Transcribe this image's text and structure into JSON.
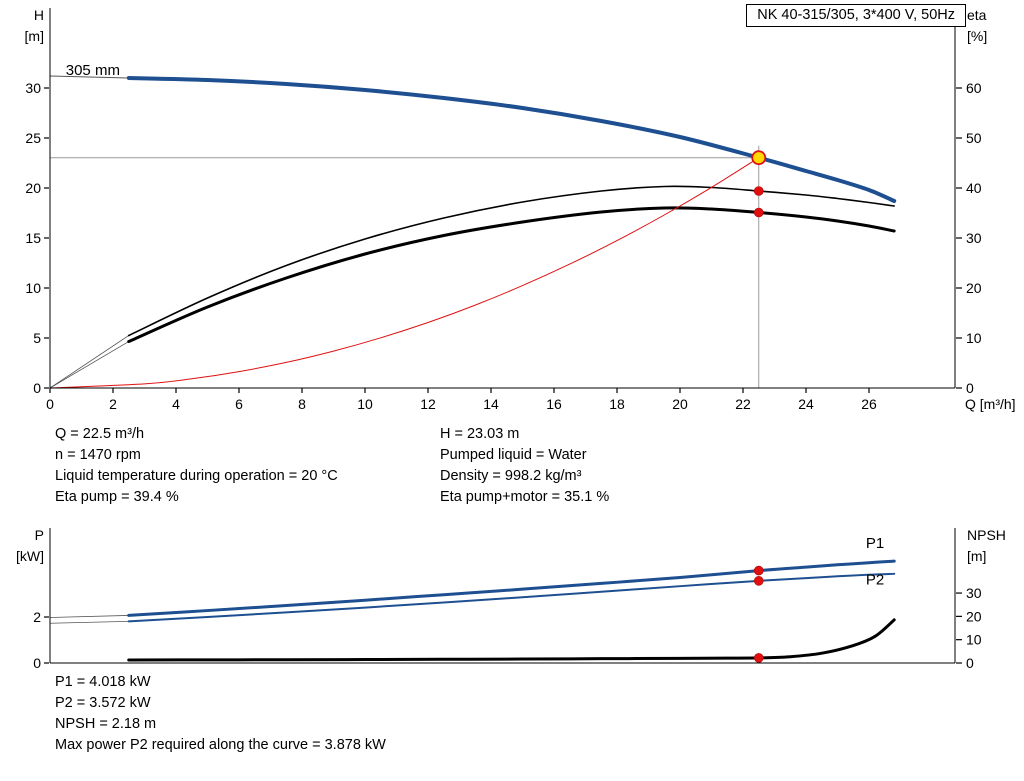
{
  "title_box": {
    "label": "NK 40-315/305, 3*400 V, 50Hz"
  },
  "operating_point_text": {
    "left": [
      "Q = 22.5 m³/h",
      "n = 1470 rpm",
      "Liquid temperature during operation = 20 °C",
      "Eta pump = 39.4 %"
    ],
    "right": [
      "H = 23.03 m",
      "Pumped liquid = Water",
      "Density = 998.2 kg/m³",
      "Eta pump+motor = 35.1 %"
    ]
  },
  "power_text": [
    "P1 = 4.018 kW",
    "P2 = 3.572 kW",
    "NPSH = 2.18 m",
    "Max power P2 required along the curve = 3.878 kW"
  ],
  "colors": {
    "curve_blue": "#1d4f91",
    "red": "#e01010",
    "duty_yellow": "#ffd900",
    "crosshair_gray": "#9a9a9a",
    "black": "#000000"
  },
  "chart_data": [
    {
      "id": "top",
      "type": "line",
      "x_axis": {
        "label": "Q [m³/h]",
        "min": 0,
        "max": 28.73,
        "ticks": [
          0,
          2,
          4,
          6,
          8,
          10,
          12,
          14,
          16,
          18,
          20,
          22,
          24,
          26
        ]
      },
      "y_left": {
        "label_lines": [
          "H",
          "[m]"
        ],
        "min": 0,
        "max": 38,
        "ticks": [
          0,
          5,
          10,
          15,
          20,
          25,
          30
        ]
      },
      "y_right": {
        "label_lines": [
          "eta",
          "[%]"
        ],
        "min": 0,
        "max": 76,
        "ticks": [
          0,
          10,
          20,
          30,
          40,
          50,
          60
        ]
      },
      "crosshair": {
        "q": 22.5,
        "value": 23.03,
        "axis": "left"
      },
      "series": [
        {
          "name": "pump-curve-lead-in",
          "axis": "left",
          "color": "#555555",
          "width": 1,
          "points": [
            [
              0,
              31.2
            ],
            [
              2.5,
              31
            ]
          ]
        },
        {
          "name": "pump-curve-305mm",
          "axis": "left",
          "color": "#1d4f91",
          "width": 4,
          "points": [
            [
              2.5,
              31
            ],
            [
              5,
              30.8
            ],
            [
              7.5,
              30.4
            ],
            [
              10,
              29.8
            ],
            [
              12.5,
              29.0
            ],
            [
              15,
              28.0
            ],
            [
              17.5,
              26.7
            ],
            [
              20,
              25.1
            ],
            [
              22.5,
              23.03
            ],
            [
              24,
              21.7
            ],
            [
              25,
              20.8
            ],
            [
              26,
              19.8
            ],
            [
              26.8,
              18.7
            ]
          ]
        },
        {
          "name": "eta-pump-lead-in",
          "axis": "right",
          "color": "#555555",
          "width": 0.8,
          "points": [
            [
              0,
              0
            ],
            [
              2.5,
              10.5
            ]
          ]
        },
        {
          "name": "eta-pump-curve",
          "axis": "right",
          "color": "#000000",
          "width": 1.6,
          "points": [
            [
              2.5,
              10.5
            ],
            [
              5,
              18
            ],
            [
              7.5,
              24.5
            ],
            [
              10,
              29.8
            ],
            [
              12.5,
              34
            ],
            [
              15,
              37.2
            ],
            [
              17.5,
              39.4
            ],
            [
              19.5,
              40.3
            ],
            [
              21,
              40.1
            ],
            [
              22.5,
              39.4
            ],
            [
              24,
              38.6
            ],
            [
              25,
              37.9
            ],
            [
              26,
              37.1
            ],
            [
              26.8,
              36.4
            ]
          ]
        },
        {
          "name": "eta-pump-motor-lead-in",
          "axis": "right",
          "color": "#555555",
          "width": 0.8,
          "points": [
            [
              0,
              0
            ],
            [
              2.5,
              9.3
            ]
          ]
        },
        {
          "name": "eta-pump-motor-curve",
          "axis": "right",
          "color": "#000000",
          "width": 3,
          "points": [
            [
              2.5,
              9.3
            ],
            [
              5,
              16.2
            ],
            [
              7.5,
              22
            ],
            [
              10,
              26.8
            ],
            [
              12.5,
              30.5
            ],
            [
              15,
              33.2
            ],
            [
              17.5,
              35.2
            ],
            [
              19.5,
              36
            ],
            [
              21,
              35.8
            ],
            [
              22.5,
              35.1
            ],
            [
              24,
              34.2
            ],
            [
              25,
              33.4
            ],
            [
              26,
              32.4
            ],
            [
              26.8,
              31.4
            ]
          ]
        },
        {
          "name": "system-curve",
          "axis": "left",
          "color": "#e01010",
          "width": 1,
          "points": [
            [
              0,
              0
            ],
            [
              3,
              0.41
            ],
            [
              4.5,
              0.92
            ],
            [
              6,
              1.64
            ],
            [
              7.5,
              2.56
            ],
            [
              9,
              3.69
            ],
            [
              10.5,
              5.02
            ],
            [
              12,
              6.55
            ],
            [
              13.5,
              8.29
            ],
            [
              15,
              10.24
            ],
            [
              16.5,
              12.39
            ],
            [
              18,
              14.74
            ],
            [
              19.5,
              17.3
            ],
            [
              21,
              20.06
            ],
            [
              22.5,
              23.03
            ]
          ]
        }
      ],
      "markers": [
        {
          "name": "duty-point",
          "q": 22.5,
          "value": 23.03,
          "axis": "left",
          "style": "duty"
        },
        {
          "name": "eta-pump-point",
          "q": 22.5,
          "value": 39.4,
          "axis": "right",
          "style": "dot"
        },
        {
          "name": "eta-pump-motor-point",
          "q": 22.5,
          "value": 35.1,
          "axis": "right",
          "style": "dot"
        }
      ],
      "curve_labels": [
        {
          "text": "305 mm",
          "q": 0.5,
          "value": 31.3,
          "axis": "left",
          "color": "#000000",
          "anchor": "start"
        }
      ]
    },
    {
      "id": "bottom",
      "type": "line",
      "x_axis": {
        "label": "",
        "min": 0,
        "max": 28.73,
        "ticks": []
      },
      "y_left": {
        "label_lines": [
          "P",
          "[kW]"
        ],
        "min": 0,
        "max": 5.87,
        "ticks": [
          0,
          2
        ]
      },
      "y_right": {
        "label_lines": [
          "NPSH",
          "[m]"
        ],
        "min": 0,
        "max": 57.9,
        "ticks": [
          0,
          10,
          20,
          30
        ]
      },
      "series": [
        {
          "name": "p1-lead-in",
          "axis": "left",
          "color": "#555555",
          "width": 0.8,
          "points": [
            [
              0,
              1.98
            ],
            [
              2.5,
              2.07
            ]
          ]
        },
        {
          "name": "p1-curve",
          "axis": "left",
          "color": "#1d4f91",
          "width": 3,
          "points": [
            [
              2.5,
              2.07
            ],
            [
              5,
              2.28
            ],
            [
              7.5,
              2.5
            ],
            [
              10,
              2.73
            ],
            [
              12.5,
              2.97
            ],
            [
              15,
              3.21
            ],
            [
              17.5,
              3.46
            ],
            [
              20,
              3.72
            ],
            [
              22.5,
              4.018
            ],
            [
              24,
              4.17
            ],
            [
              25,
              4.27
            ],
            [
              26,
              4.36
            ],
            [
              26.8,
              4.43
            ]
          ]
        },
        {
          "name": "p2-lead-in",
          "axis": "left",
          "color": "#555555",
          "width": 0.8,
          "points": [
            [
              0,
              1.73
            ],
            [
              2.5,
              1.81
            ]
          ]
        },
        {
          "name": "p2-curve",
          "axis": "left",
          "color": "#1d4f91",
          "width": 2,
          "points": [
            [
              2.5,
              1.81
            ],
            [
              5,
              2.0
            ],
            [
              7.5,
              2.2
            ],
            [
              10,
              2.41
            ],
            [
              12.5,
              2.63
            ],
            [
              15,
              2.86
            ],
            [
              17.5,
              3.1
            ],
            [
              20,
              3.34
            ],
            [
              22.5,
              3.572
            ],
            [
              24,
              3.69
            ],
            [
              25,
              3.77
            ],
            [
              26,
              3.84
            ],
            [
              26.8,
              3.878
            ]
          ]
        },
        {
          "name": "npsh-curve",
          "axis": "right",
          "color": "#000000",
          "width": 3,
          "points": [
            [
              2.5,
              1.3
            ],
            [
              5,
              1.35
            ],
            [
              7.5,
              1.4
            ],
            [
              10,
              1.5
            ],
            [
              12.5,
              1.6
            ],
            [
              15,
              1.7
            ],
            [
              17.5,
              1.85
            ],
            [
              20,
              2.0
            ],
            [
              21.5,
              2.1
            ],
            [
              22.5,
              2.18
            ],
            [
              23.5,
              2.7
            ],
            [
              24.5,
              4.2
            ],
            [
              25.5,
              7.5
            ],
            [
              26.2,
              11.5
            ],
            [
              26.8,
              18.5
            ]
          ]
        }
      ],
      "markers": [
        {
          "name": "p1-point",
          "q": 22.5,
          "value": 4.018,
          "axis": "left",
          "style": "dot"
        },
        {
          "name": "p2-point",
          "q": 22.5,
          "value": 3.572,
          "axis": "left",
          "style": "dot"
        },
        {
          "name": "npsh-point",
          "q": 22.5,
          "value": 2.18,
          "axis": "right",
          "style": "dot"
        }
      ],
      "curve_labels": [
        {
          "text": "P1",
          "q": 25.9,
          "value": 5.0,
          "axis": "left",
          "color": "#1d4f91",
          "anchor": "start"
        },
        {
          "text": "P2",
          "q": 25.9,
          "value": 3.42,
          "axis": "left",
          "color": "#1d4f91",
          "anchor": "start"
        }
      ]
    }
  ]
}
